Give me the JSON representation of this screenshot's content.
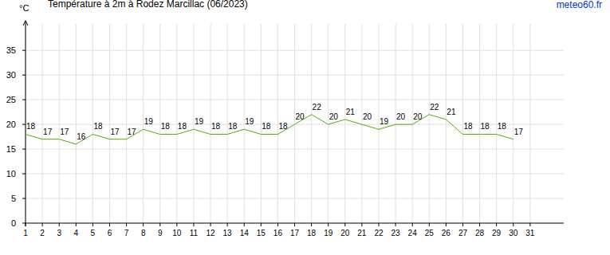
{
  "chart_data": {
    "type": "line",
    "title": "Température à 2m à Rodez Marcillac (06/2023)",
    "y_label": "°C",
    "annotations": [
      "meteo60.fr"
    ],
    "x": [
      1,
      2,
      3,
      4,
      5,
      6,
      7,
      8,
      9,
      10,
      11,
      12,
      13,
      14,
      15,
      16,
      17,
      18,
      19,
      20,
      21,
      22,
      23,
      24,
      25,
      26,
      27,
      28,
      29,
      30
    ],
    "values": [
      18,
      17,
      17,
      16,
      18,
      17,
      17,
      19,
      18,
      18,
      19,
      18,
      18,
      19,
      18,
      18,
      20,
      22,
      20,
      21,
      20,
      19,
      20,
      20,
      22,
      21,
      18,
      18,
      18,
      17
    ],
    "color": "#55aa11",
    "xlim": [
      1,
      33
    ],
    "xticks": [
      1,
      2,
      3,
      4,
      5,
      6,
      7,
      8,
      9,
      10,
      11,
      12,
      13,
      14,
      15,
      16,
      17,
      18,
      19,
      20,
      21,
      22,
      23,
      24,
      25,
      26,
      27,
      28,
      29,
      30,
      31
    ],
    "ylim": [
      0,
      41
    ],
    "yticks": [
      0,
      5,
      10,
      15,
      20,
      25,
      30,
      35
    ],
    "grid": true,
    "data_labels": true
  }
}
